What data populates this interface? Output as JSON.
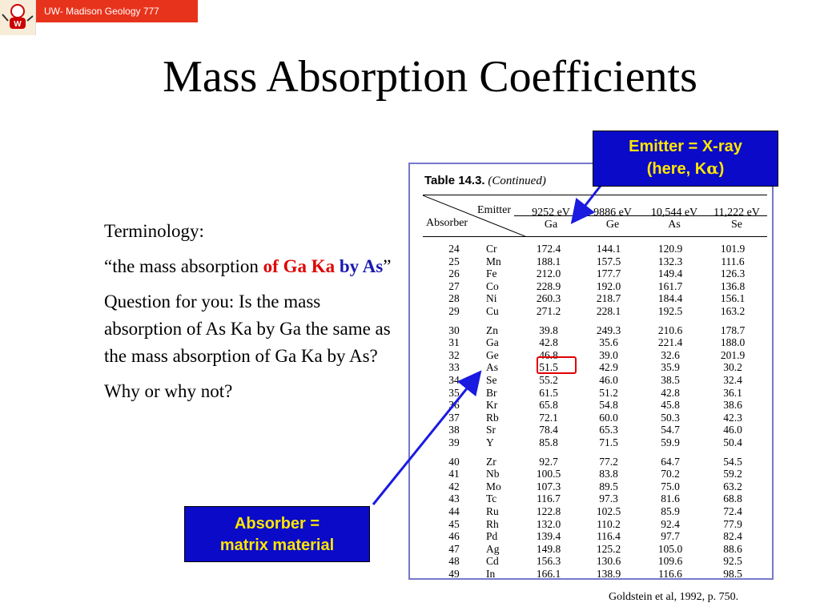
{
  "header": {
    "label": "UW- Madison Geology  777"
  },
  "title": "Mass Absorption Coefficients",
  "body": {
    "terminology": "Terminology:",
    "quote_open": "“the mass absorption ",
    "quote_red": "of Ga Ka",
    "quote_space": " ",
    "quote_blue": "by As",
    "quote_close": "”",
    "question": "Question for you: Is the mass absorption of As Ka by Ga the same as the mass absorption of Ga Ka by As?",
    "why": "Why or why not?"
  },
  "table": {
    "heading_bold": "Table 14.3.",
    "heading_italic": "(Continued)",
    "emitter_label": "Emitter",
    "absorber_label": "Absorber",
    "columns": [
      {
        "energy": "9252 eV",
        "element": "Ga"
      },
      {
        "energy": "9886 eV",
        "element": "Ge"
      },
      {
        "energy": "10,544 eV",
        "element": "As"
      },
      {
        "energy": "11,222 eV",
        "element": "Se"
      }
    ],
    "rows": [
      {
        "z": "24",
        "sym": "Cr",
        "v": [
          "172.4",
          "144.1",
          "120.9",
          "101.9"
        ]
      },
      {
        "z": "25",
        "sym": "Mn",
        "v": [
          "188.1",
          "157.5",
          "132.3",
          "111.6"
        ]
      },
      {
        "z": "26",
        "sym": "Fe",
        "v": [
          "212.0",
          "177.7",
          "149.4",
          "126.3"
        ]
      },
      {
        "z": "27",
        "sym": "Co",
        "v": [
          "228.9",
          "192.0",
          "161.7",
          "136.8"
        ]
      },
      {
        "z": "28",
        "sym": "Ni",
        "v": [
          "260.3",
          "218.7",
          "184.4",
          "156.1"
        ]
      },
      {
        "z": "29",
        "sym": "Cu",
        "v": [
          "271.2",
          "228.1",
          "192.5",
          "163.2"
        ]
      },
      {
        "z": "30",
        "sym": "Zn",
        "v": [
          "39.8",
          "249.3",
          "210.6",
          "178.7"
        ]
      },
      {
        "z": "31",
        "sym": "Ga",
        "v": [
          "42.8",
          "35.6",
          "221.4",
          "188.0"
        ]
      },
      {
        "z": "32",
        "sym": "Ge",
        "v": [
          "46.8",
          "39.0",
          "32.6",
          "201.9"
        ]
      },
      {
        "z": "33",
        "sym": "As",
        "v": [
          "51.5",
          "42.9",
          "35.9",
          "30.2"
        ]
      },
      {
        "z": "34",
        "sym": "Se",
        "v": [
          "55.2",
          "46.0",
          "38.5",
          "32.4"
        ]
      },
      {
        "z": "35",
        "sym": "Br",
        "v": [
          "61.5",
          "51.2",
          "42.8",
          "36.1"
        ]
      },
      {
        "z": "36",
        "sym": "Kr",
        "v": [
          "65.8",
          "54.8",
          "45.8",
          "38.6"
        ]
      },
      {
        "z": "37",
        "sym": "Rb",
        "v": [
          "72.1",
          "60.0",
          "50.3",
          "42.3"
        ]
      },
      {
        "z": "38",
        "sym": "Sr",
        "v": [
          "78.4",
          "65.3",
          "54.7",
          "46.0"
        ]
      },
      {
        "z": "39",
        "sym": "Y",
        "v": [
          "85.8",
          "71.5",
          "59.9",
          "50.4"
        ]
      },
      {
        "z": "40",
        "sym": "Zr",
        "v": [
          "92.7",
          "77.2",
          "64.7",
          "54.5"
        ]
      },
      {
        "z": "41",
        "sym": "Nb",
        "v": [
          "100.5",
          "83.8",
          "70.2",
          "59.2"
        ]
      },
      {
        "z": "42",
        "sym": "Mo",
        "v": [
          "107.3",
          "89.5",
          "75.0",
          "63.2"
        ]
      },
      {
        "z": "43",
        "sym": "Tc",
        "v": [
          "116.7",
          "97.3",
          "81.6",
          "68.8"
        ]
      },
      {
        "z": "44",
        "sym": "Ru",
        "v": [
          "122.8",
          "102.5",
          "85.9",
          "72.4"
        ]
      },
      {
        "z": "45",
        "sym": "Rh",
        "v": [
          "132.0",
          "110.2",
          "92.4",
          "77.9"
        ]
      },
      {
        "z": "46",
        "sym": "Pd",
        "v": [
          "139.4",
          "116.4",
          "97.7",
          "82.4"
        ]
      },
      {
        "z": "47",
        "sym": "Ag",
        "v": [
          "149.8",
          "125.2",
          "105.0",
          "88.6"
        ]
      },
      {
        "z": "48",
        "sym": "Cd",
        "v": [
          "156.3",
          "130.6",
          "109.6",
          "92.5"
        ]
      },
      {
        "z": "49",
        "sym": "In",
        "v": [
          "166.1",
          "138.9",
          "116.6",
          "98.5"
        ]
      }
    ]
  },
  "callouts": {
    "emitter_line1": "Emitter = X-ray",
    "emitter_line2_prefix": "(here, K",
    "emitter_alpha": "α",
    "emitter_line2_suffix": ")",
    "absorber_line1": "Absorber =",
    "absorber_line2": "matrix material"
  },
  "citation": "Goldstein et al, 1992, p. 750.",
  "colors": {
    "header_bar": "#e8331c",
    "callout_bg": "#0a0ac8",
    "callout_text": "#ffe600",
    "highlight": "#e00000",
    "red_text": "#e00000",
    "blue_text": "#1a1ab0"
  },
  "icons": {
    "logo": "badger-mascot-icon"
  }
}
